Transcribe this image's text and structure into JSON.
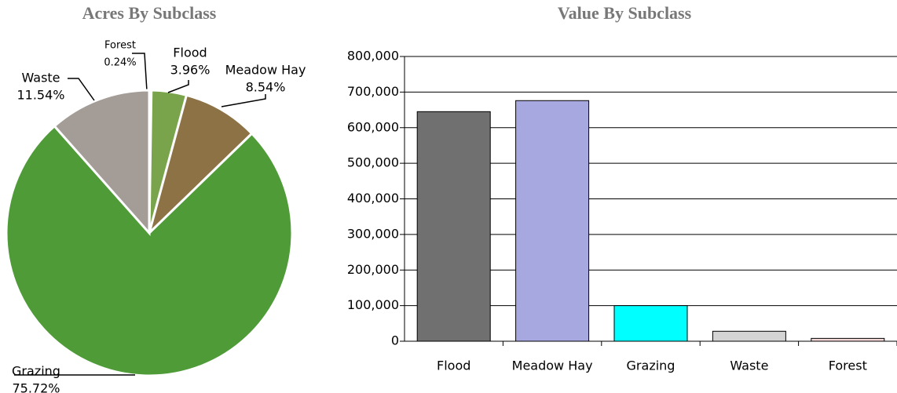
{
  "chart_data": [
    {
      "type": "pie",
      "title": "Acres By Subclass",
      "categories": [
        "Forest",
        "Flood",
        "Meadow Hay",
        "Grazing",
        "Waste"
      ],
      "values": [
        0.24,
        3.96,
        8.54,
        75.72,
        11.54
      ],
      "value_labels": [
        "0.24%",
        "3.96%",
        "8.54%",
        "75.72%",
        "11.54%"
      ],
      "colors": [
        "#5f6f4a",
        "#79a44c",
        "#8c7244",
        "#4f9b38",
        "#a49d97"
      ]
    },
    {
      "type": "bar",
      "title": "Value By Subclass",
      "categories": [
        "Flood",
        "Meadow Hay",
        "Grazing",
        "Waste",
        "Forest"
      ],
      "values": [
        645000,
        676000,
        100000,
        28000,
        8000
      ],
      "colors": [
        "#707070",
        "#a8a8e0",
        "#00ffff",
        "#d4d4d4",
        "#f4d8d8"
      ],
      "ylim": [
        0,
        800000
      ],
      "yticks": [
        0,
        {
          "value": 100000,
          "label": "100,000"
        },
        {
          "value": 200000,
          "label": "200,000"
        },
        {
          "value": 300000,
          "label": "300,000"
        },
        {
          "value": 400000,
          "label": "400,000"
        },
        {
          "value": 500000,
          "label": "500,000"
        },
        {
          "value": 600000,
          "label": "600,000"
        },
        {
          "value": 700000,
          "label": "700,000"
        },
        {
          "value": 800000,
          "label": "800,000"
        }
      ],
      "grid": true
    }
  ]
}
